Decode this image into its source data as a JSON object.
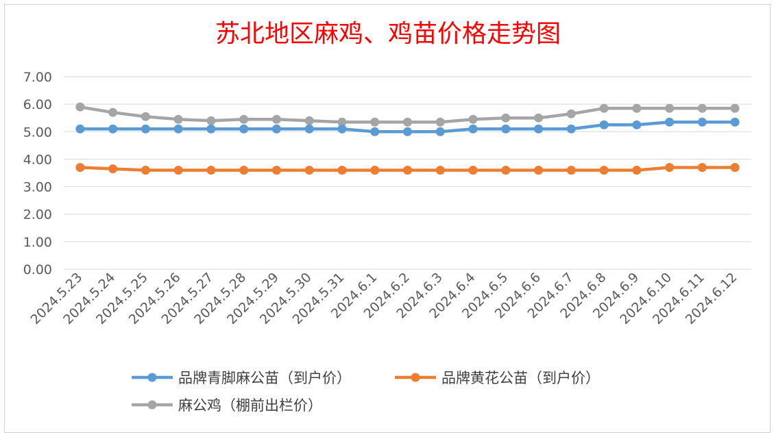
{
  "chart_data": {
    "type": "line",
    "title": "苏北地区麻鸡、鸡苗价格走势图",
    "title_color": "#ff0000",
    "xlabel": "",
    "ylabel": "",
    "ylim": [
      0,
      7
    ],
    "yticks": [
      "0.00",
      "1.00",
      "2.00",
      "3.00",
      "4.00",
      "5.00",
      "6.00",
      "7.00"
    ],
    "grid": true,
    "legend_position": "bottom",
    "categories": [
      "2024.5.23",
      "2024.5.24",
      "2024.5.25",
      "2024.5.26",
      "2024.5.27",
      "2024.5.28",
      "2024.5.29",
      "2024.5.30",
      "2024.5.31",
      "2024.6.1",
      "2024.6.2",
      "2024.6.3",
      "2024.6.4",
      "2024.6.5",
      "2024.6.6",
      "2024.6.7",
      "2024.6.8",
      "2024.6.9",
      "2024.6.10",
      "2024.6.11",
      "2024.6.12"
    ],
    "series": [
      {
        "name": "品牌青脚麻公苗（到户价）",
        "color": "#5b9bd5",
        "values": [
          5.1,
          5.1,
          5.1,
          5.1,
          5.1,
          5.1,
          5.1,
          5.1,
          5.1,
          5.0,
          5.0,
          5.0,
          5.1,
          5.1,
          5.1,
          5.1,
          5.25,
          5.25,
          5.35,
          5.35,
          5.35
        ]
      },
      {
        "name": "品牌黄花公苗（到户价）",
        "color": "#ed7d31",
        "values": [
          3.7,
          3.65,
          3.6,
          3.6,
          3.6,
          3.6,
          3.6,
          3.6,
          3.6,
          3.6,
          3.6,
          3.6,
          3.6,
          3.6,
          3.6,
          3.6,
          3.6,
          3.6,
          3.7,
          3.7,
          3.7
        ]
      },
      {
        "name": "麻公鸡（棚前出栏价）",
        "color": "#a5a5a5",
        "values": [
          5.9,
          5.7,
          5.55,
          5.45,
          5.4,
          5.45,
          5.45,
          5.4,
          5.35,
          5.35,
          5.35,
          5.35,
          5.45,
          5.5,
          5.5,
          5.65,
          5.85,
          5.85,
          5.85,
          5.85,
          5.85
        ]
      }
    ]
  }
}
